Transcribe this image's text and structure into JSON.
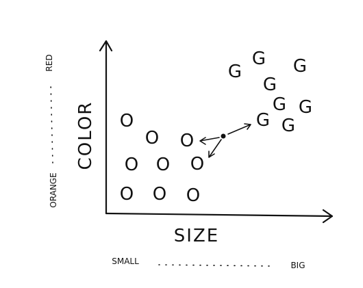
{
  "axes": {
    "x_label": "SIZE",
    "y_label": "COLOR",
    "x_low": "SMALL",
    "x_high": "BIG",
    "y_low": "ORANGE",
    "y_high": "RED"
  },
  "points": [
    {
      "label": "O"
    },
    {
      "label": "O"
    },
    {
      "label": "O"
    },
    {
      "label": "O"
    },
    {
      "label": "O"
    },
    {
      "label": "O"
    },
    {
      "label": "O"
    },
    {
      "label": "O"
    },
    {
      "label": "O"
    },
    {
      "label": "G"
    },
    {
      "label": "G"
    },
    {
      "label": "G"
    },
    {
      "label": "G"
    },
    {
      "label": "G"
    },
    {
      "label": "G"
    },
    {
      "label": "G"
    },
    {
      "label": "G"
    }
  ]
}
